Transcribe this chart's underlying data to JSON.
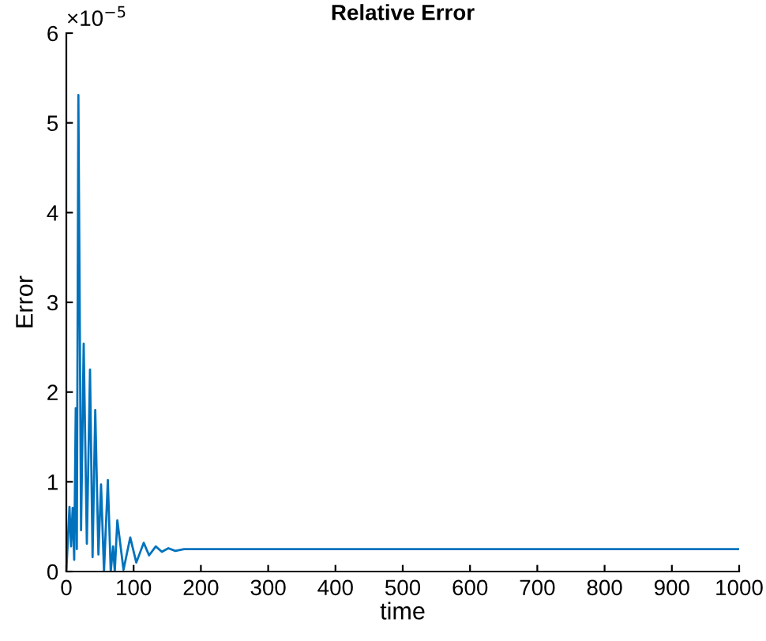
{
  "chart_data": {
    "type": "line",
    "title": "Relative Error",
    "xlabel": "time",
    "ylabel": "Error",
    "annotations": [
      "×10$^{−5}$"
    ],
    "x": [
      0,
      4.7,
      7,
      9.4,
      11.7,
      14,
      15.6,
      17.9,
      21.9,
      25.8,
      30.5,
      35.2,
      39,
      43,
      47.7,
      51.6,
      56,
      61.7,
      66,
      69.5,
      72,
      75.8,
      85,
      95,
      104,
      115,
      123,
      133,
      142,
      151.6,
      162,
      175,
      1000
    ],
    "series": [
      {
        "color": "#0072bd",
        "values": [
          0,
          0.72,
          0.28,
          0.71,
          0.13,
          1.82,
          0.25,
          5.31,
          0.46,
          2.54,
          0.31,
          2.25,
          0.16,
          1.8,
          0.19,
          0.97,
          0,
          1.02,
          0,
          0.28,
          0,
          0.57,
          0.02,
          0.38,
          0.1,
          0.32,
          0.18,
          0.28,
          0.22,
          0.26,
          0.23,
          0.25,
          0.25
        ]
      }
    ],
    "xlim": [
      0,
      1000
    ],
    "xticks": [
      0,
      100,
      200,
      300,
      400,
      500,
      600,
      700,
      800,
      900,
      1000
    ],
    "ylim": [
      0,
      6
    ],
    "yticks": [
      0,
      1,
      2,
      3,
      4,
      5,
      6
    ]
  }
}
